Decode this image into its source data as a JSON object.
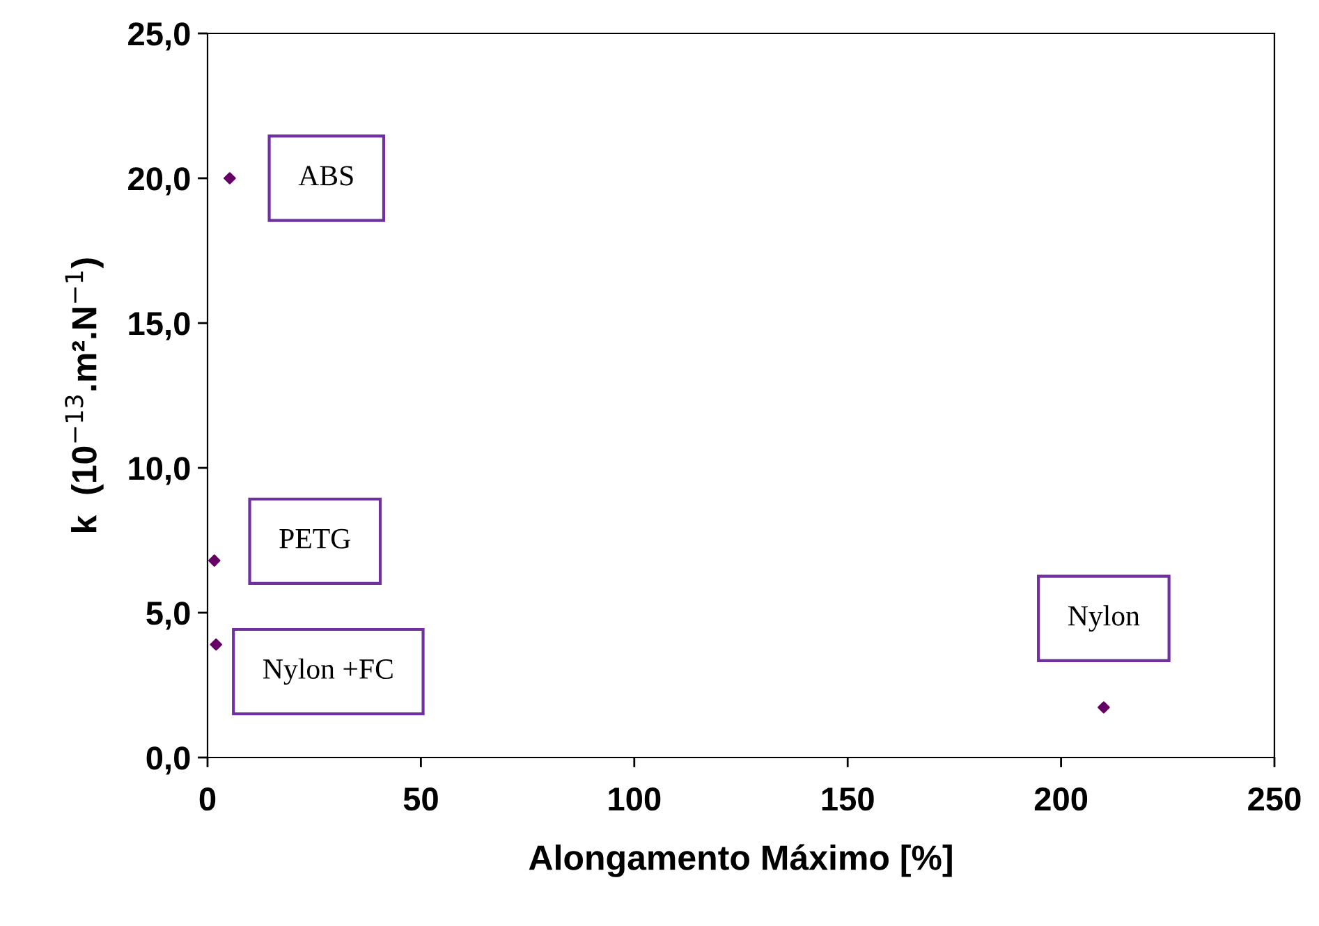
{
  "chart_data": {
    "type": "scatter",
    "xlabel": "Alongamento Máximo [%]",
    "ylabel": "k  (10$^{−13}$.m².N$^{−1}$)",
    "x": [
      5.2,
      1.6,
      2,
      210
    ],
    "values": [
      20.0,
      6.8,
      3.9,
      1.73
    ],
    "color": "#660066",
    "marker": "diamond",
    "xlim": [
      0,
      250
    ],
    "xticks": [
      0,
      50,
      100,
      150,
      200,
      250
    ],
    "ylim": [
      0,
      25
    ],
    "yticks": [
      {
        "value": 0,
        "label": "0,0"
      },
      {
        "value": 5,
        "label": "5,0"
      },
      {
        "value": 10,
        "label": "10,0"
      },
      {
        "value": 15,
        "label": "15,0"
      },
      {
        "value": 20,
        "label": "20,0"
      },
      {
        "value": 25,
        "label": "25,0"
      }
    ],
    "grid": false,
    "legend": false,
    "annotations": [
      {
        "text": "ABS",
        "x": 5.2,
        "y": 20.0
      },
      {
        "text": "PETG",
        "x": 1.6,
        "y": 6.8
      },
      {
        "text": "Nylon +FC",
        "x": 2,
        "y": 3.9
      },
      {
        "text": "Nylon",
        "x": 210,
        "y": 1.73
      }
    ]
  }
}
